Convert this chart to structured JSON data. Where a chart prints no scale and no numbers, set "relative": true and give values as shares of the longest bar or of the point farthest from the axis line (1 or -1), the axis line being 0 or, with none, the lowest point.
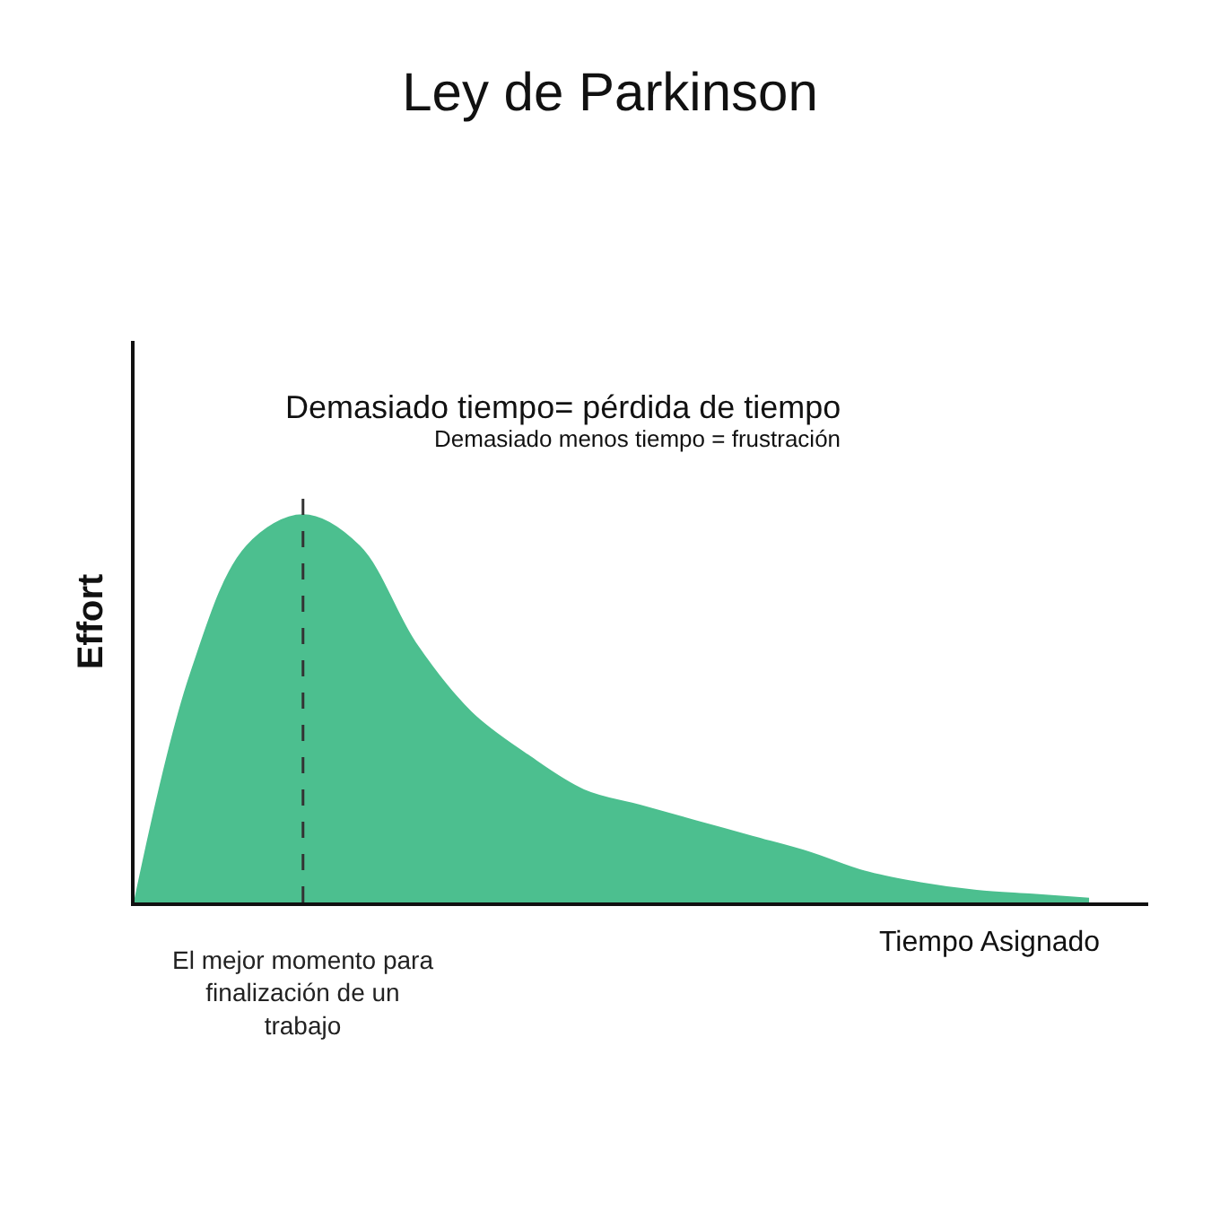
{
  "chart_data": {
    "type": "area",
    "title": "Ley de Parkinson",
    "xlabel": "Tiempo Asignado",
    "ylabel": "Effort",
    "relative": true,
    "categories": [
      null,
      null,
      null,
      null,
      null,
      null,
      null,
      null,
      null,
      null,
      null,
      null,
      null,
      null,
      null,
      null,
      null,
      null
    ],
    "series": [
      {
        "color": "#4cbf8f",
        "values": [
          0,
          0.59,
          0.92,
          1,
          0.92,
          0.67,
          0.49,
          0.38,
          0.29,
          0.25,
          0.21,
          0.17,
          0.13,
          0.08,
          0.05,
          0.03,
          0.02,
          0.01
        ]
      }
    ],
    "annotations": [
      "Demasiado tiempo= pérdida de tiempo",
      "Demasiado menos tiempo = frustración",
      "El mejor momento para finalización de un trabajo"
    ]
  }
}
